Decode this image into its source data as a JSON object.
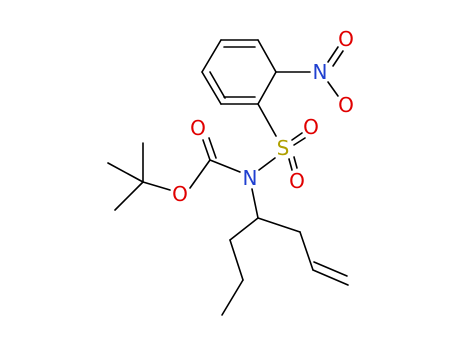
{
  "atoms": [
    "O",
    "N",
    "O",
    "S",
    "O",
    "O",
    "N",
    "O",
    "O"
  ]
}
